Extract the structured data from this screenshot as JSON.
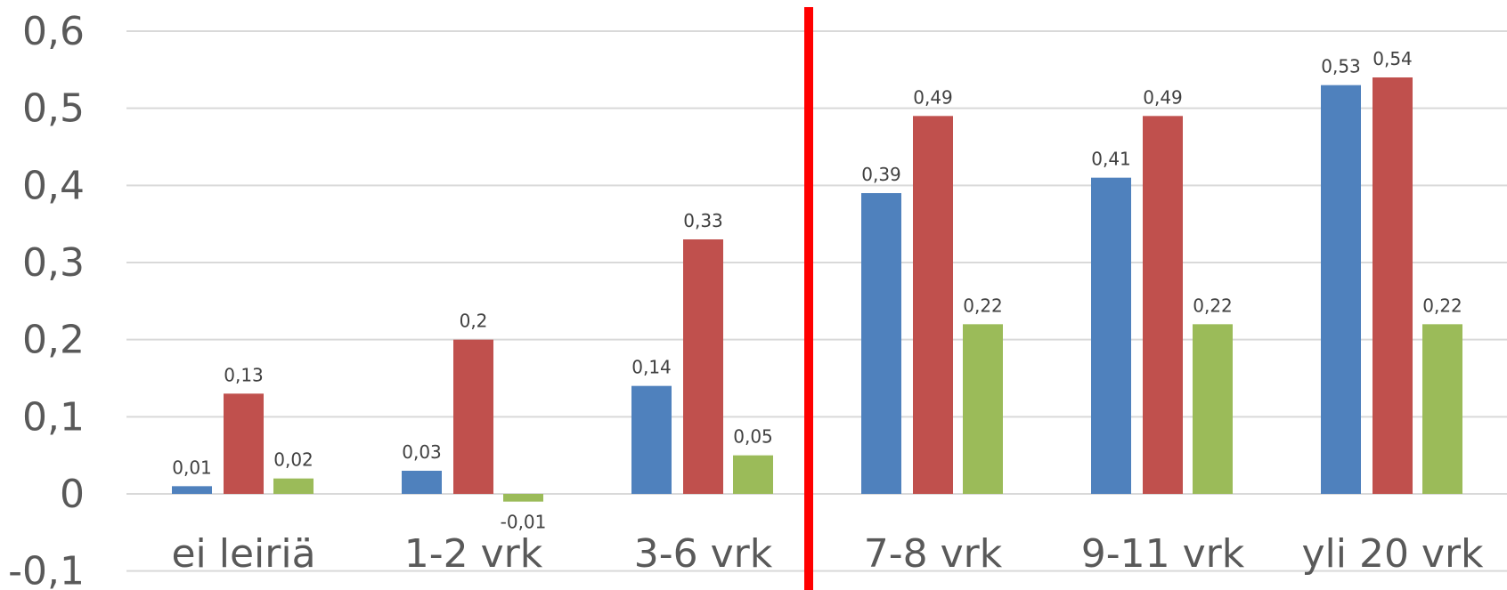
{
  "chart_data": {
    "type": "bar",
    "categories": [
      "ei leiriä",
      "1-2 vrk",
      "3-6 vrk",
      "7-8 vrk",
      "9-11 vrk",
      "yli 20 vrk"
    ],
    "series": [
      {
        "values": [
          0.01,
          0.03,
          0.14,
          0.39,
          0.41,
          0.53
        ],
        "labels": [
          "0,01",
          "0,03",
          "0,14",
          "0,39",
          "0,41",
          "0,53"
        ],
        "color": "#4f81bd"
      },
      {
        "values": [
          0.13,
          0.2,
          0.33,
          0.49,
          0.49,
          0.54
        ],
        "labels": [
          "0,13",
          "0,2",
          "0,33",
          "0,49",
          "0,49",
          "0,54"
        ],
        "color": "#c0504d"
      },
      {
        "values": [
          0.02,
          -0.01,
          0.05,
          0.22,
          0.22,
          0.22
        ],
        "labels": [
          "0,02",
          "-0,01",
          "0,05",
          "0,22",
          "0,22",
          "0,22"
        ],
        "color": "#9bbb59"
      }
    ],
    "ylim": [
      -0.1,
      0.6
    ],
    "yticks": [
      {
        "value": 0.6,
        "label": "0,6"
      },
      {
        "value": 0.5,
        "label": "0,5"
      },
      {
        "value": 0.4,
        "label": "0,4"
      },
      {
        "value": 0.3,
        "label": "0,3"
      },
      {
        "value": 0.2,
        "label": "0,2"
      },
      {
        "value": 0.1,
        "label": "0,1"
      },
      {
        "value": 0,
        "label": "0"
      },
      {
        "value": -0.1,
        "label": "-0,1"
      }
    ],
    "grid": true,
    "legend": "none",
    "divider": {
      "after_category_index": 2,
      "color": "#ff0000"
    }
  }
}
